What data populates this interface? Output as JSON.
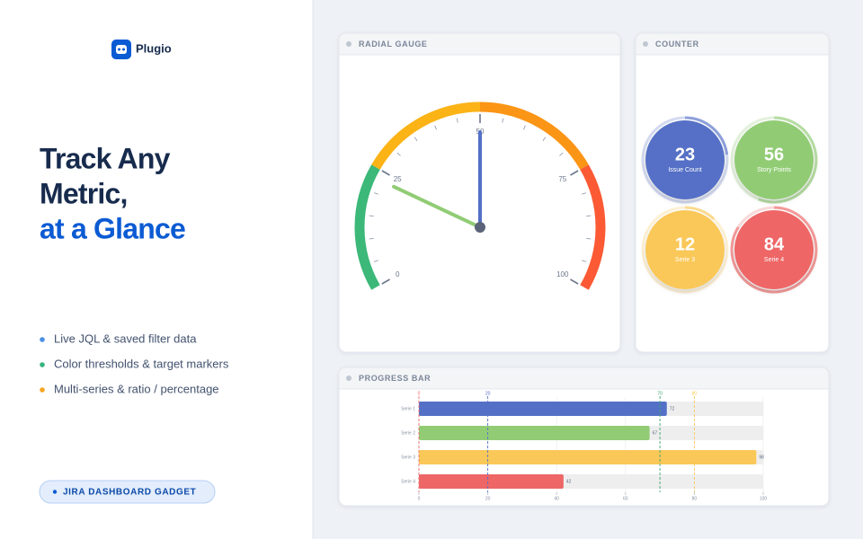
{
  "brand": {
    "name": "Plugio"
  },
  "hero": {
    "line1": "Track Any",
    "line2": "Metric,",
    "line3": "at a Glance"
  },
  "features": [
    {
      "text": "Live JQL & saved filter data",
      "color": "#4a90e2"
    },
    {
      "text": "Color thresholds & target markers",
      "color": "#36b37e"
    },
    {
      "text": "Multi-series & ratio / percentage",
      "color": "#f5a623"
    }
  ],
  "badge": "JIRA DASHBOARD GADGET",
  "panels": {
    "gauge": {
      "title": "RADIAL GAUGE",
      "chart": {
        "type": "gauge",
        "lim": [
          0,
          100
        ],
        "ticks": [
          0,
          25,
          50,
          75,
          100
        ],
        "minor_tick_step": 5,
        "bands": [
          {
            "from": 0,
            "to": 25,
            "color": "#3cb878"
          },
          {
            "from": 25,
            "to": 50,
            "color": "#fbb316"
          },
          {
            "from": 50,
            "to": 75,
            "color": "#fb9516"
          },
          {
            "from": 75,
            "to": 100,
            "color": "#fb5a34"
          }
        ],
        "needles": [
          {
            "value": 50,
            "color": "#5470c6"
          },
          {
            "value": 23,
            "color": "#91cc75"
          }
        ]
      }
    },
    "counter": {
      "title": "COUNTER",
      "chart": {
        "type": "counter",
        "lim": [
          0,
          100
        ],
        "items": [
          {
            "value": 23,
            "label": "Issue Count",
            "color": "#5470c6"
          },
          {
            "value": 56,
            "label": "Story Points",
            "color": "#91cc75"
          },
          {
            "value": 12,
            "label": "Serie 3",
            "color": "#fac858"
          },
          {
            "value": 84,
            "label": "Serie 4",
            "color": "#ee6666"
          }
        ]
      }
    },
    "progress": {
      "title": "PROGRESS BAR",
      "chart": {
        "type": "bar",
        "orientation": "horizontal",
        "categories": [
          "Serie 1",
          "Serie 2",
          "Serie 3",
          "Serie 4"
        ],
        "values": [
          72,
          67,
          98,
          42
        ],
        "colors": [
          "#5470c6",
          "#91cc75",
          "#fac858",
          "#ee6666"
        ],
        "xlim": [
          0,
          100
        ],
        "xticks": [
          0,
          20,
          40,
          60,
          80,
          100
        ],
        "track_color": "#eeeeee",
        "markers": [
          {
            "value": 0,
            "color": "#ee6666"
          },
          {
            "value": 20,
            "color": "#5470c6"
          },
          {
            "value": 70,
            "color": "#3ba272"
          },
          {
            "value": 80,
            "color": "#fac858"
          }
        ]
      }
    }
  }
}
